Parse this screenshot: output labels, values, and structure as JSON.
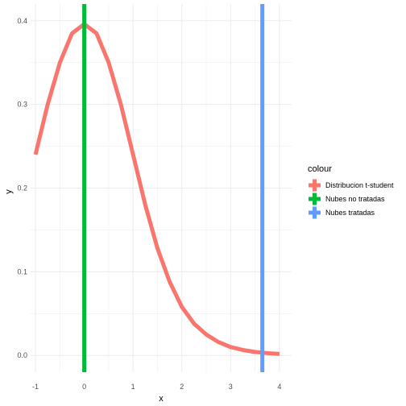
{
  "chart_data": {
    "type": "line",
    "xlabel": "x",
    "ylabel": "y",
    "xlim": [
      -1.1,
      4.25
    ],
    "ylim": [
      -0.02,
      0.42
    ],
    "x_ticks": [
      -1,
      0,
      1,
      2,
      3,
      4
    ],
    "y_ticks": [
      0.0,
      0.1,
      0.2,
      0.3,
      0.4
    ],
    "x_tick_labels": [
      "-1",
      "0",
      "1",
      "2",
      "3",
      "4"
    ],
    "y_tick_labels": [
      "0.0",
      "0.1",
      "0.2",
      "0.3",
      "0.4"
    ],
    "grid": true,
    "legend_position": "right",
    "legend_title": "colour",
    "series": [
      {
        "name": "Distribucion t-student",
        "type": "curve",
        "color": "#F8766D",
        "x": [
          -1,
          -0.75,
          -0.5,
          -0.25,
          0,
          0.25,
          0.5,
          0.75,
          1,
          1.25,
          1.5,
          1.75,
          2,
          2.25,
          2.5,
          2.75,
          3,
          3.25,
          3.5,
          3.75,
          4
        ],
        "y": [
          0.24,
          0.3,
          0.35,
          0.385,
          0.396,
          0.385,
          0.35,
          0.3,
          0.24,
          0.18,
          0.128,
          0.088,
          0.058,
          0.038,
          0.025,
          0.016,
          0.01,
          0.0065,
          0.0042,
          0.0028,
          0.0018
        ]
      },
      {
        "name": "Nubes no tratadas",
        "type": "vline",
        "color": "#00BA38",
        "x": 0
      },
      {
        "name": "Nubes tratadas",
        "type": "vline",
        "color": "#619CFF",
        "x": 3.65
      }
    ]
  }
}
